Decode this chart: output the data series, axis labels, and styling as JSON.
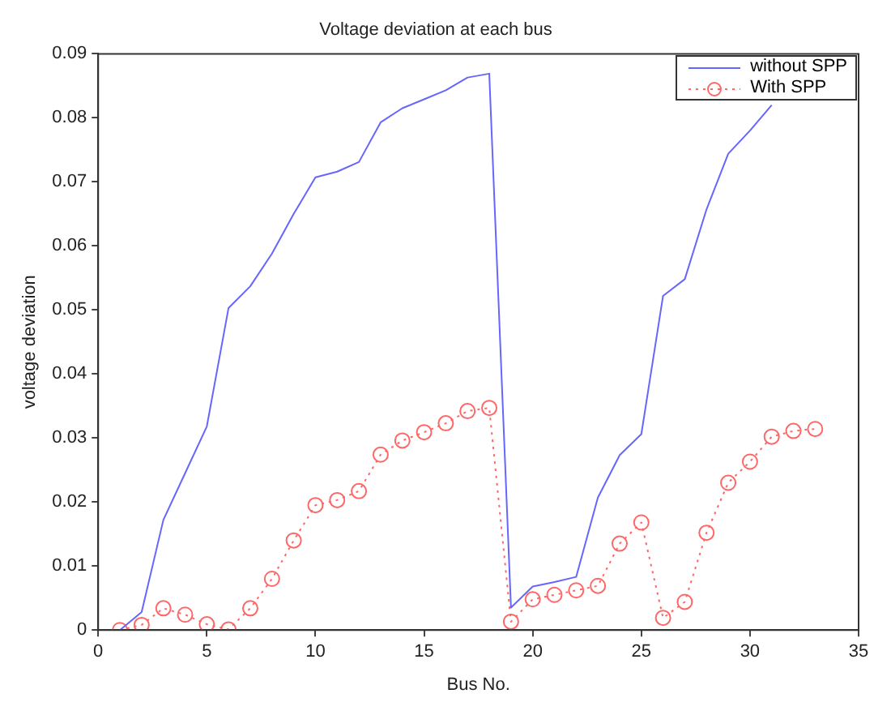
{
  "chart_data": {
    "type": "line",
    "title": "Voltage deviation at each bus",
    "xlabel": "Bus No.",
    "ylabel": "voltage deviation",
    "x": [
      1,
      2,
      3,
      4,
      5,
      6,
      7,
      8,
      9,
      10,
      11,
      12,
      13,
      14,
      15,
      16,
      17,
      18,
      19,
      20,
      21,
      22,
      23,
      24,
      25,
      26,
      27,
      28,
      29,
      30,
      31,
      32,
      33
    ],
    "series": [
      {
        "name": "without SPP",
        "color": "#6666ff",
        "marker": "none",
        "line_style": "solid",
        "values": [
          0,
          0.0028,
          0.0172,
          0.0245,
          0.0318,
          0.0503,
          0.0537,
          0.0588,
          0.065,
          0.0707,
          0.0716,
          0.0731,
          0.0793,
          0.0815,
          0.0829,
          0.0843,
          0.0863,
          0.0869,
          0.0035,
          0.0068,
          0.0075,
          0.0083,
          0.0207,
          0.0273,
          0.0306,
          0.0522,
          0.0548,
          0.0657,
          0.0744,
          0.078,
          0.082,
          null,
          null
        ]
      },
      {
        "name": "With SPP",
        "color": "#ff6666",
        "marker": "circle",
        "line_style": "dotted",
        "values": [
          0,
          0.0008,
          0.0034,
          0.0024,
          0.0009,
          0.0001,
          0.0034,
          0.008,
          0.014,
          0.0195,
          0.0203,
          0.0217,
          0.0274,
          0.0296,
          0.0309,
          0.0323,
          0.0342,
          0.0347,
          0.0013,
          0.0048,
          0.0055,
          0.0062,
          0.0069,
          0.0135,
          0.0168,
          0.0019,
          0.0044,
          0.0152,
          0.023,
          0.0263,
          0.0302,
          0.0311,
          0.0314
        ]
      }
    ],
    "xlim": [
      0,
      35
    ],
    "xticks": [
      0,
      5,
      10,
      15,
      20,
      25,
      30,
      35
    ],
    "ylim": [
      0,
      0.09
    ],
    "yticks": [
      0,
      0.01,
      0.02,
      0.03,
      0.04,
      0.05,
      0.06,
      0.07,
      0.08,
      0.09
    ],
    "grid": false,
    "legend": "top right"
  }
}
